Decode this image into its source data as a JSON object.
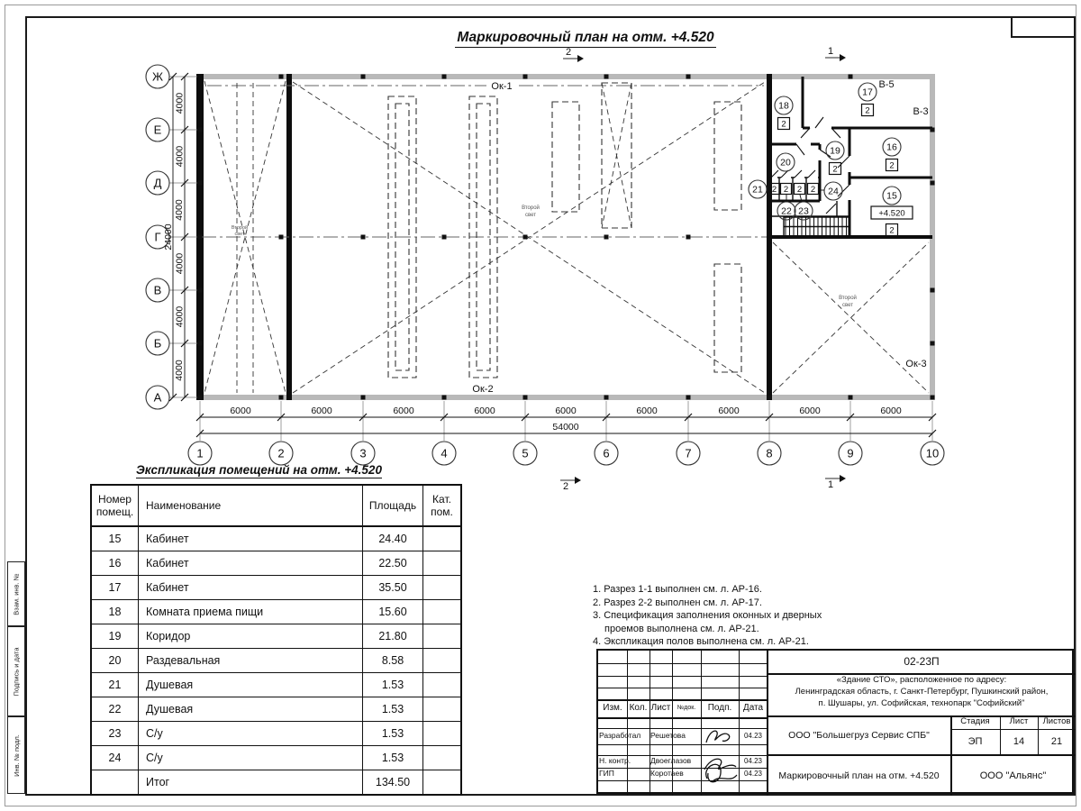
{
  "sheet": {
    "title": "Маркировочный план на отм. +4.520",
    "margin_labels": [
      "Взам. инв. №",
      "Подпись и дата",
      "Инв. № подл."
    ]
  },
  "plan": {
    "axes_rows": [
      "Ж",
      "Е",
      "Д",
      "Г",
      "В",
      "Б",
      "А"
    ],
    "axes_cols": [
      "1",
      "2",
      "3",
      "4",
      "5",
      "6",
      "7",
      "8",
      "9",
      "10"
    ],
    "dims_left": [
      "4000",
      "4000",
      "4000",
      "4000",
      "4000",
      "4000"
    ],
    "dim_left_total": "24000",
    "dims_bottom": [
      "6000",
      "6000",
      "6000",
      "6000",
      "6000",
      "6000",
      "6000",
      "6000",
      "6000"
    ],
    "dim_bottom_total": "54000",
    "labels": {
      "ok1": "Ок-1",
      "ok2": "Ок-2",
      "ok3": "Ок-3",
      "v5": "В-5",
      "v3": "В-3",
      "second_light_1": "Второй",
      "second_light_2": "свет",
      "level": "+4.520"
    },
    "sections": {
      "s1": "1",
      "s2": "2"
    },
    "rooms": [
      {
        "num": "15",
        "cat": "2"
      },
      {
        "num": "16",
        "cat": "2"
      },
      {
        "num": "17",
        "cat": "2"
      },
      {
        "num": "18",
        "cat": "2"
      },
      {
        "num": "19",
        "cat": "2"
      },
      {
        "num": "20",
        "cat": ""
      },
      {
        "num": "21",
        "cat": "2"
      },
      {
        "num": "22",
        "cat": "2"
      },
      {
        "num": "23",
        "cat": "2"
      },
      {
        "num": "24",
        "cat": "2"
      }
    ]
  },
  "explication": {
    "title": "Экспликация помещений на отм. +4.520",
    "columns": [
      "Номер помещ.",
      "Наименование",
      "Площадь",
      "Кат. пом."
    ],
    "rows": [
      [
        "15",
        "Кабинет",
        "24.40",
        ""
      ],
      [
        "16",
        "Кабинет",
        "22.50",
        ""
      ],
      [
        "17",
        "Кабинет",
        "35.50",
        ""
      ],
      [
        "18",
        "Комната приема пищи",
        "15.60",
        ""
      ],
      [
        "19",
        "Коридор",
        "21.80",
        ""
      ],
      [
        "20",
        "Раздевальная",
        "8.58",
        ""
      ],
      [
        "21",
        "Душевая",
        "1.53",
        ""
      ],
      [
        "22",
        "Душевая",
        "1.53",
        ""
      ],
      [
        "23",
        "С/у",
        "1.53",
        ""
      ],
      [
        "24",
        "С/у",
        "1.53",
        ""
      ],
      [
        "",
        "Итог",
        "134.50",
        ""
      ]
    ]
  },
  "notes": {
    "lines": [
      "1. Разрез 1-1 выполнен см. л. АР-16.",
      "2. Разрез 2-2 выполнен см. л. АР-17.",
      "3. Спецификация заполнения оконных и дверных",
      "проемов выполнена см. л. АР-21.",
      "4. Экспликация полов выполнена см. л. АР-21."
    ]
  },
  "titleblock": {
    "doc_number": "02-23П",
    "object_lines": [
      "«Здание СТО», расположенное по адресу:",
      "Ленинградская область, г. Санкт-Петербург, Пушкинский район,",
      "п. Шушары, ул. Софийская, технопарк \"Софийский\""
    ],
    "header": [
      "Изм.",
      "Кол.",
      "Лист",
      "№док.",
      "Подп.",
      "Дата"
    ],
    "roles": [
      {
        "role": "Разработал",
        "name": "Решетова",
        "date": "04.23"
      },
      {
        "role": "Н. контр.",
        "name": "Двоеглазов",
        "date": "04.23"
      },
      {
        "role": "ГИП",
        "name": "Коротаев",
        "date": "04.23"
      }
    ],
    "company": "ООО \"Большегруз Сервис СПБ\"",
    "stage_label": "Стадия",
    "sheet_label": "Лист",
    "sheets_label": "Листов",
    "stage": "ЭП",
    "sheet": "14",
    "sheets": "21",
    "drawing_name": "Маркировочный план на отм. +4.520",
    "org": "ООО \"Альянс\""
  }
}
